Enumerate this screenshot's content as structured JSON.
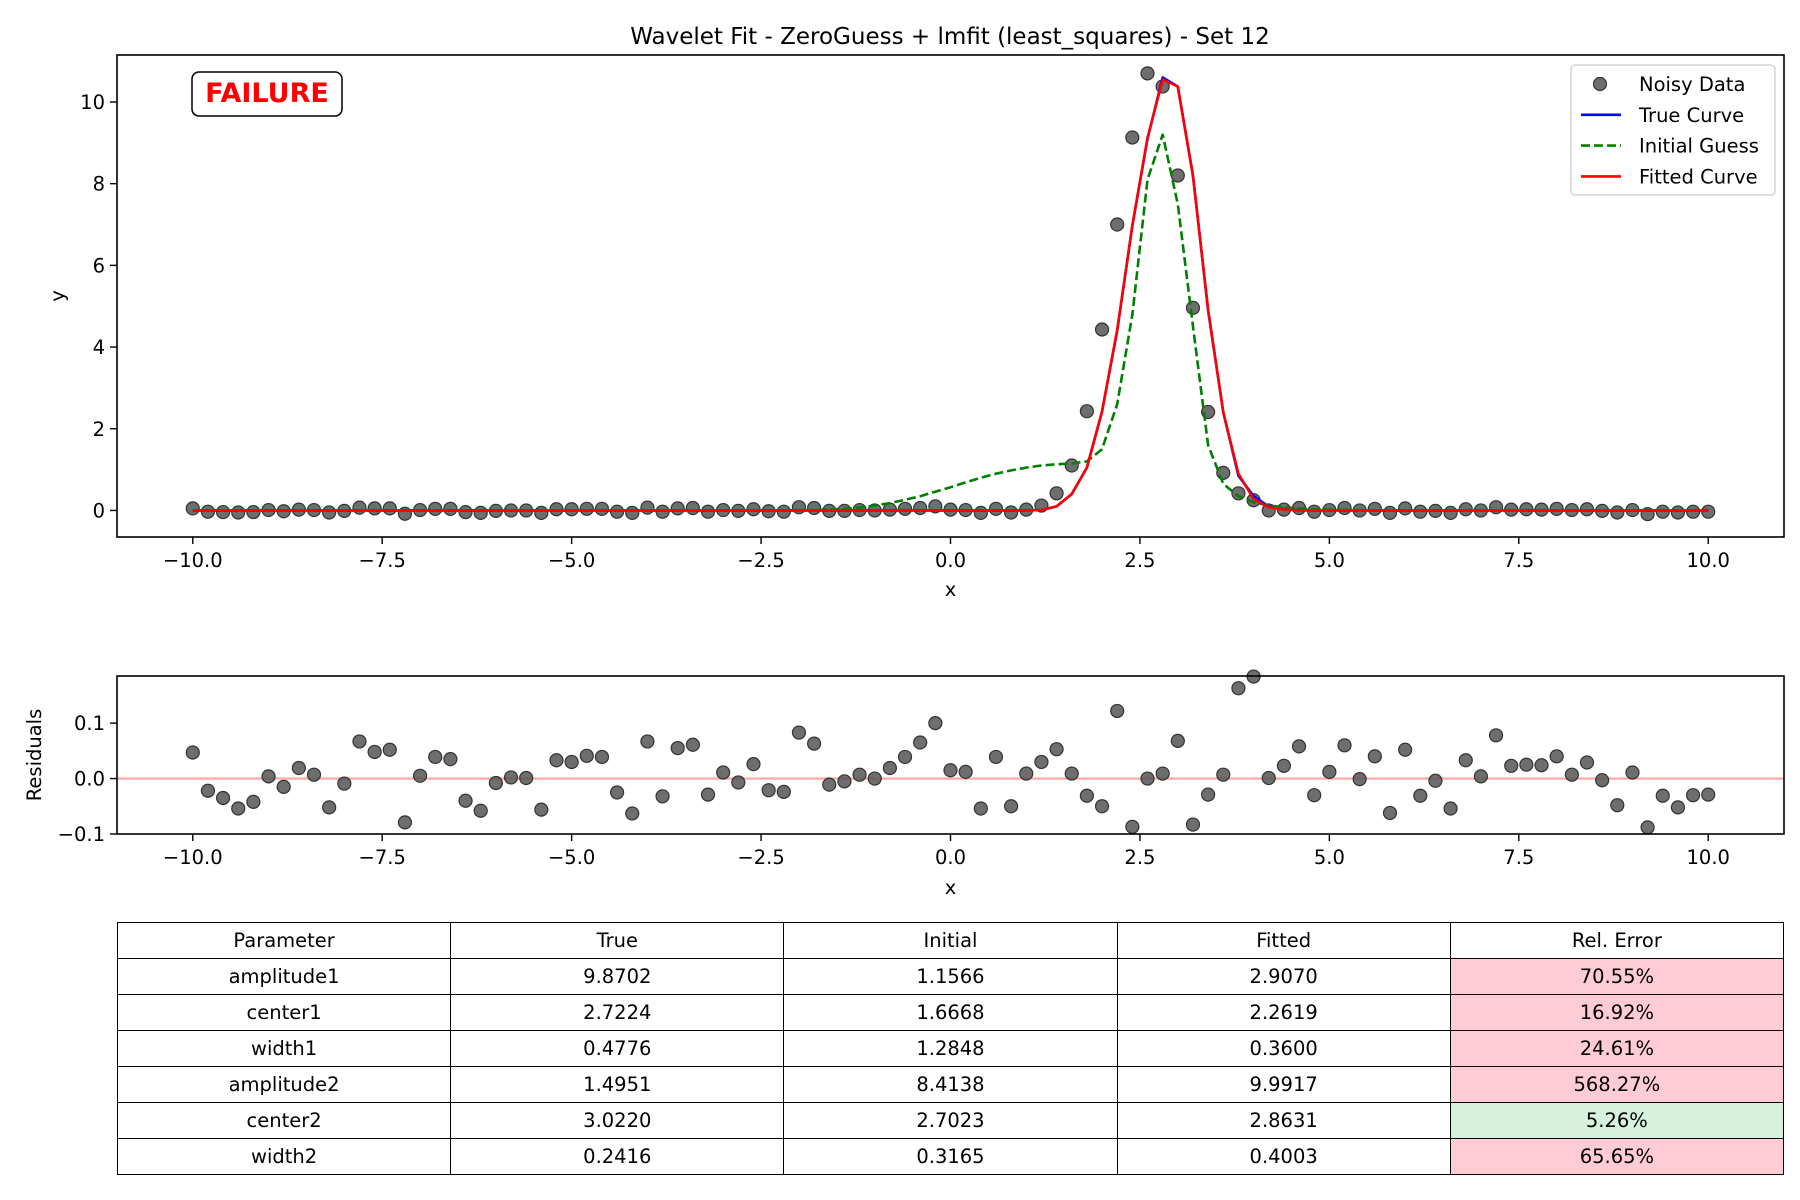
{
  "chart_data": [
    {
      "type": "line",
      "title": "Wavelet Fit - ZeroGuess + lmfit (least_squares) - Set 12",
      "xlabel": "x",
      "ylabel": "y",
      "xlim": [
        -11.0,
        11.0
      ],
      "ylim": [
        -0.65,
        11.15
      ],
      "xticks": [
        -10.0,
        -7.5,
        -5.0,
        -2.5,
        0.0,
        2.5,
        5.0,
        7.5,
        10.0
      ],
      "xtick_labels": [
        "−10.0",
        "−7.5",
        "−5.0",
        "−2.5",
        "0.0",
        "2.5",
        "5.0",
        "7.5",
        "10.0"
      ],
      "yticks": [
        0,
        2,
        4,
        6,
        8,
        10
      ],
      "ytick_labels": [
        "0",
        "2",
        "4",
        "6",
        "8",
        "10"
      ],
      "grid": false,
      "legend_position": "upper right",
      "status_label": "FAILURE",
      "status_color": "#ff0000",
      "x": [
        -10.0,
        -9.8,
        -9.6,
        -9.4,
        -9.2,
        -9.0,
        -8.8,
        -8.6,
        -8.4,
        -8.2,
        -8.0,
        -7.8,
        -7.6,
        -7.4,
        -7.2,
        -7.0,
        -6.8,
        -6.6,
        -6.4,
        -6.2,
        -6.0,
        -5.8,
        -5.6,
        -5.4,
        -5.2,
        -5.0,
        -4.8,
        -4.6,
        -4.4,
        -4.2,
        -4.0,
        -3.8,
        -3.6,
        -3.4,
        -3.2,
        -3.0,
        -2.8,
        -2.6,
        -2.4,
        -2.2,
        -2.0,
        -1.8,
        -1.6,
        -1.4,
        -1.2,
        -1.0,
        -0.8,
        -0.6,
        -0.4,
        -0.2,
        0.0,
        0.2,
        0.4,
        0.6,
        0.8,
        1.0,
        1.2,
        1.4,
        1.6,
        1.8,
        2.0,
        2.2,
        2.4,
        2.6,
        2.8,
        3.0,
        3.2,
        3.4,
        3.6,
        3.8,
        4.0,
        4.2,
        4.4,
        4.6,
        4.8,
        5.0,
        5.2,
        5.4,
        5.6,
        5.8,
        6.0,
        6.2,
        6.4,
        6.6,
        6.8,
        7.0,
        7.2,
        7.4,
        7.6,
        7.8,
        8.0,
        8.2,
        8.4,
        8.6,
        8.8,
        9.0,
        9.2,
        9.4,
        9.6,
        9.8,
        10.0
      ],
      "series": [
        {
          "name": "Noisy Data",
          "kind": "scatter",
          "color": "#555555",
          "y": [
            0.05,
            -0.03,
            -0.04,
            -0.05,
            -0.04,
            0.01,
            -0.02,
            0.02,
            0.01,
            -0.05,
            -0.01,
            0.07,
            0.05,
            0.05,
            -0.08,
            0.01,
            0.04,
            0.04,
            -0.04,
            -0.06,
            -0.01,
            0.0,
            0.0,
            -0.06,
            0.03,
            0.03,
            0.04,
            0.04,
            -0.03,
            -0.06,
            0.07,
            -0.03,
            0.05,
            0.06,
            -0.03,
            0.01,
            -0.01,
            0.03,
            -0.02,
            -0.03,
            0.08,
            0.06,
            -0.01,
            -0.01,
            0.01,
            0.0,
            0.02,
            0.04,
            0.06,
            0.1,
            0.02,
            0.01,
            -0.06,
            0.04,
            -0.05,
            0.02,
            0.12,
            0.42,
            1.1,
            2.43,
            4.43,
            7.0,
            9.13,
            10.7,
            10.38,
            8.2,
            4.96,
            2.41,
            0.92,
            0.42,
            0.25,
            0.0,
            0.02,
            0.06,
            -0.03,
            0.01,
            0.06,
            0.0,
            0.04,
            -0.06,
            0.05,
            -0.03,
            -0.01,
            -0.06,
            0.03,
            0.0,
            0.08,
            0.02,
            0.03,
            0.02,
            0.04,
            0.01,
            0.03,
            -0.01,
            -0.05,
            0.01,
            -0.09,
            -0.03,
            -0.05,
            -0.03,
            -0.03
          ]
        },
        {
          "name": "True Curve",
          "kind": "line",
          "color": "#0000ff",
          "y": [
            0,
            0,
            0,
            0,
            0,
            0,
            0,
            0,
            0,
            0,
            0,
            0,
            0,
            0,
            0,
            0,
            0,
            0,
            0,
            0,
            0,
            0,
            0,
            0,
            0,
            0,
            0,
            0,
            0,
            0,
            0,
            0,
            0,
            0,
            0,
            0,
            0,
            0,
            0,
            0,
            0,
            0,
            0,
            0,
            0,
            0,
            0,
            0,
            0,
            0,
            0,
            0,
            0,
            0,
            0,
            0,
            0.01,
            0.1,
            0.4,
            1.05,
            2.42,
            4.4,
            6.98,
            9.1,
            10.6,
            10.38,
            8.2,
            4.9,
            2.4,
            0.85,
            0.35,
            0.1,
            0.03,
            0.01,
            0,
            0,
            0,
            0,
            0,
            0,
            0,
            0,
            0,
            0,
            0,
            0,
            0,
            0,
            0,
            0,
            0,
            0,
            0,
            0,
            0,
            0,
            0,
            0,
            0,
            0,
            0
          ]
        },
        {
          "name": "Initial Guess",
          "kind": "line",
          "dashed": true,
          "color": "#008000",
          "y": [
            0,
            0,
            0,
            0,
            0,
            0,
            0,
            0,
            0,
            0,
            0,
            0,
            0,
            0,
            0,
            0,
            0,
            0,
            0,
            0,
            0,
            0,
            0,
            0,
            0,
            0,
            0,
            0,
            0,
            0,
            0,
            0,
            0,
            0,
            0,
            0,
            0,
            0,
            0,
            0,
            0,
            0.01,
            0.02,
            0.04,
            0.07,
            0.12,
            0.18,
            0.26,
            0.35,
            0.46,
            0.57,
            0.69,
            0.8,
            0.9,
            0.98,
            1.05,
            1.1,
            1.13,
            1.15,
            1.2,
            1.5,
            2.6,
            4.8,
            8.1,
            9.2,
            7.5,
            4.5,
            1.6,
            0.65,
            0.35,
            0.2,
            0.12,
            0.08,
            0.05,
            0.03,
            0.02,
            0.01,
            0,
            0,
            0,
            0,
            0,
            0,
            0,
            0,
            0,
            0,
            0,
            0,
            0,
            0,
            0,
            0,
            0,
            0,
            0,
            0,
            0,
            0,
            0,
            0
          ]
        },
        {
          "name": "Fitted Curve",
          "kind": "line",
          "color": "#ff0000",
          "y": [
            0,
            0,
            0,
            0,
            0,
            0,
            0,
            0,
            0,
            0,
            0,
            0,
            0,
            0,
            0,
            0,
            0,
            0,
            0,
            0,
            0,
            0,
            0,
            0,
            0,
            0,
            0,
            0,
            0,
            0,
            0,
            0,
            0,
            0,
            0,
            0,
            0,
            0,
            0,
            0,
            0,
            0,
            0,
            0,
            0,
            0,
            0,
            0,
            0,
            0,
            0,
            0,
            0,
            0,
            0,
            0,
            0.01,
            0.1,
            0.4,
            1.05,
            2.42,
            4.42,
            6.98,
            9.12,
            10.55,
            10.38,
            8.18,
            4.92,
            2.4,
            0.9,
            0.28,
            0.08,
            0.02,
            0.0,
            0,
            0,
            0,
            0,
            0,
            0,
            0,
            0,
            0,
            0,
            0,
            0,
            0,
            0,
            0,
            0,
            0,
            0,
            0,
            0,
            0,
            0,
            0,
            0,
            0,
            0,
            0
          ]
        }
      ]
    },
    {
      "type": "scatter",
      "title": "",
      "xlabel": "x",
      "ylabel": "Residuals",
      "xlim": [
        -11.0,
        11.0
      ],
      "ylim": [
        -0.1,
        0.185
      ],
      "xticks": [
        -10.0,
        -7.5,
        -5.0,
        -2.5,
        0.0,
        2.5,
        5.0,
        7.5,
        10.0
      ],
      "xtick_labels": [
        "−10.0",
        "−7.5",
        "−5.0",
        "−2.5",
        "0.0",
        "2.5",
        "5.0",
        "7.5",
        "10.0"
      ],
      "yticks": [
        -0.1,
        0.0,
        0.1
      ],
      "ytick_labels": [
        "−0.1",
        "0.0",
        "0.1"
      ],
      "reference_line": {
        "y": 0.0,
        "color": "#ffaaaa"
      },
      "grid": false,
      "point_color": "#555555",
      "x": [
        -10.0,
        -9.8,
        -9.6,
        -9.4,
        -9.2,
        -9.0,
        -8.8,
        -8.6,
        -8.4,
        -8.2,
        -8.0,
        -7.8,
        -7.6,
        -7.4,
        -7.2,
        -7.0,
        -6.8,
        -6.6,
        -6.4,
        -6.2,
        -6.0,
        -5.8,
        -5.6,
        -5.4,
        -5.2,
        -5.0,
        -4.8,
        -4.6,
        -4.4,
        -4.2,
        -4.0,
        -3.8,
        -3.6,
        -3.4,
        -3.2,
        -3.0,
        -2.8,
        -2.6,
        -2.4,
        -2.2,
        -2.0,
        -1.8,
        -1.6,
        -1.4,
        -1.2,
        -1.0,
        -0.8,
        -0.6,
        -0.4,
        -0.2,
        0.0,
        0.2,
        0.4,
        0.6,
        0.8,
        1.0,
        1.2,
        1.4,
        1.6,
        1.8,
        2.0,
        2.2,
        2.4,
        2.6,
        2.8,
        3.0,
        3.2,
        3.4,
        3.6,
        3.8,
        4.0,
        4.2,
        4.4,
        4.6,
        4.8,
        5.0,
        5.2,
        5.4,
        5.6,
        5.8,
        6.0,
        6.2,
        6.4,
        6.6,
        6.8,
        7.0,
        7.2,
        7.4,
        7.6,
        7.8,
        8.0,
        8.2,
        8.4,
        8.6,
        8.8,
        9.0,
        9.2,
        9.4,
        9.6,
        9.8,
        10.0
      ],
      "y": [
        0.047,
        -0.022,
        -0.035,
        -0.054,
        -0.042,
        0.004,
        -0.015,
        0.019,
        0.007,
        -0.052,
        -0.009,
        0.067,
        0.048,
        0.052,
        -0.079,
        0.005,
        0.039,
        0.035,
        -0.04,
        -0.058,
        -0.008,
        0.002,
        0.001,
        -0.056,
        0.033,
        0.03,
        0.041,
        0.039,
        -0.025,
        -0.063,
        0.067,
        -0.032,
        0.055,
        0.061,
        -0.029,
        0.011,
        -0.007,
        0.026,
        -0.021,
        -0.024,
        0.083,
        0.063,
        -0.011,
        -0.005,
        0.007,
        0.0,
        0.019,
        0.039,
        0.065,
        0.1,
        0.015,
        0.012,
        -0.054,
        0.039,
        -0.05,
        0.009,
        0.03,
        0.053,
        0.009,
        -0.031,
        -0.05,
        0.122,
        -0.087,
        0.0,
        0.009,
        0.068,
        -0.083,
        -0.029,
        0.007,
        0.163,
        0.184,
        0.001,
        0.023,
        0.058,
        -0.03,
        0.012,
        0.06,
        -0.001,
        0.04,
        -0.062,
        0.052,
        -0.031,
        -0.004,
        -0.054,
        0.033,
        0.004,
        0.078,
        0.023,
        0.025,
        0.024,
        0.04,
        0.007,
        0.029,
        -0.003,
        -0.048,
        0.011,
        -0.088,
        -0.031,
        -0.052,
        -0.03,
        -0.029
      ]
    }
  ],
  "table": {
    "header": [
      "Parameter",
      "True",
      "Initial",
      "Fitted",
      "Rel. Error"
    ],
    "rows": [
      [
        "amplitude1",
        "9.8702",
        "1.1566",
        "2.9070",
        "70.55%"
      ],
      [
        "center1",
        "2.7224",
        "1.6668",
        "2.2619",
        "16.92%"
      ],
      [
        "width1",
        "0.4776",
        "1.2848",
        "0.3600",
        "24.61%"
      ],
      [
        "amplitude2",
        "1.4951",
        "8.4138",
        "9.9917",
        "568.27%"
      ],
      [
        "center2",
        "3.0220",
        "2.7023",
        "2.8631",
        "5.26%"
      ],
      [
        "width2",
        "0.2416",
        "0.3165",
        "0.4003",
        "65.65%"
      ]
    ],
    "error_status": [
      "bad",
      "bad",
      "bad",
      "bad",
      "good",
      "bad"
    ],
    "colors": {
      "bad": "#ffccd5",
      "good": "#d6f2dc"
    }
  }
}
